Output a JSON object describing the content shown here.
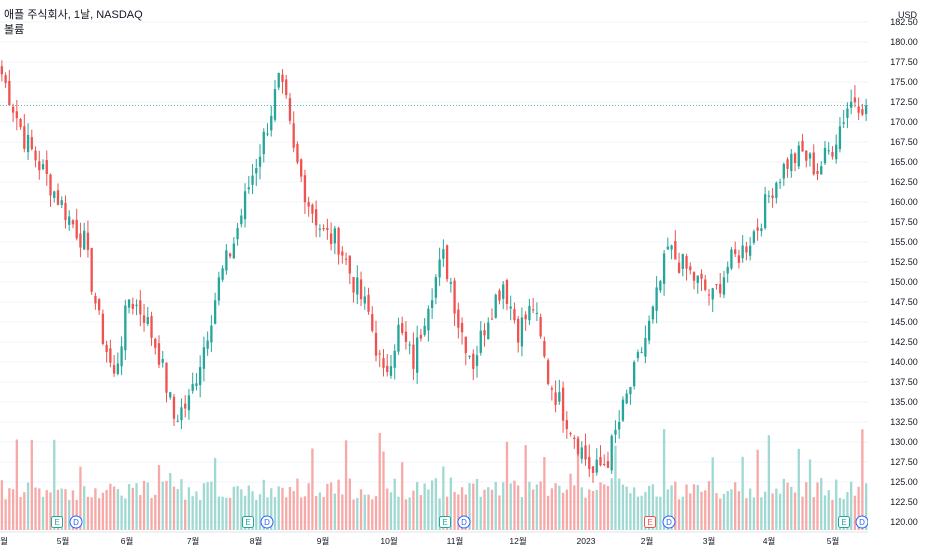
{
  "header": {
    "title": "애플 주식회사, 1날, NASDAQ",
    "subtitle": "볼륨"
  },
  "colors": {
    "up": "#26a69a",
    "down": "#ef5350",
    "up_vol": "#9fd9d2",
    "down_vol": "#f7a9a7",
    "grid": "#f0f3fa",
    "axis_text": "#131722",
    "price_line": "#26a69a"
  },
  "chart_data": {
    "type": "candlestick",
    "currency": "USD",
    "last_price": "172.07",
    "last_volume": "42.103M",
    "y_ticks": [
      "182.50",
      "180.00",
      "177.50",
      "175.00",
      "172.50",
      "170.00",
      "167.50",
      "165.00",
      "162.50",
      "160.00",
      "157.50",
      "155.00",
      "152.50",
      "150.00",
      "147.50",
      "145.00",
      "142.50",
      "140.00",
      "137.50",
      "135.00",
      "132.50",
      "130.00",
      "127.50",
      "125.00",
      "122.50",
      "120.00"
    ],
    "ylim": [
      120,
      183.5
    ],
    "x_ticks": [
      "월",
      "5월",
      "6월",
      "7월",
      "8월",
      "9월",
      "10월",
      "11월",
      "12월",
      "2023",
      "2월",
      "3월",
      "4월",
      "5월"
    ],
    "events": [
      "E",
      "D",
      "E",
      "D",
      "E",
      "D",
      "E",
      "D",
      "E",
      "D"
    ],
    "anchors": [
      [
        0,
        176
      ],
      [
        6,
        168
      ],
      [
        12,
        163
      ],
      [
        18,
        158
      ],
      [
        22,
        155
      ],
      [
        26,
        145
      ],
      [
        30,
        138
      ],
      [
        34,
        148
      ],
      [
        38,
        146
      ],
      [
        42,
        141
      ],
      [
        46,
        133
      ],
      [
        50,
        135
      ],
      [
        54,
        142
      ],
      [
        58,
        150
      ],
      [
        62,
        155
      ],
      [
        66,
        162
      ],
      [
        70,
        168
      ],
      [
        74,
        175
      ],
      [
        76,
        172
      ],
      [
        78,
        166
      ],
      [
        82,
        160
      ],
      [
        86,
        156
      ],
      [
        90,
        155
      ],
      [
        94,
        150
      ],
      [
        98,
        146
      ],
      [
        102,
        138
      ],
      [
        106,
        144
      ],
      [
        110,
        140
      ],
      [
        114,
        148
      ],
      [
        118,
        153
      ],
      [
        120,
        150
      ],
      [
        122,
        145
      ],
      [
        126,
        140
      ],
      [
        130,
        146
      ],
      [
        134,
        150
      ],
      [
        138,
        144
      ],
      [
        142,
        147
      ],
      [
        146,
        138
      ],
      [
        150,
        134
      ],
      [
        154,
        130
      ],
      [
        158,
        126
      ],
      [
        162,
        128
      ],
      [
        166,
        134
      ],
      [
        170,
        140
      ],
      [
        174,
        146
      ],
      [
        178,
        154
      ],
      [
        182,
        152
      ],
      [
        186,
        150
      ],
      [
        190,
        148
      ],
      [
        194,
        152
      ],
      [
        198,
        154
      ],
      [
        202,
        157
      ],
      [
        206,
        162
      ],
      [
        210,
        165
      ],
      [
        214,
        166
      ],
      [
        218,
        164
      ],
      [
        222,
        167
      ],
      [
        226,
        172
      ],
      [
        228,
        173
      ],
      [
        231,
        172
      ]
    ]
  }
}
